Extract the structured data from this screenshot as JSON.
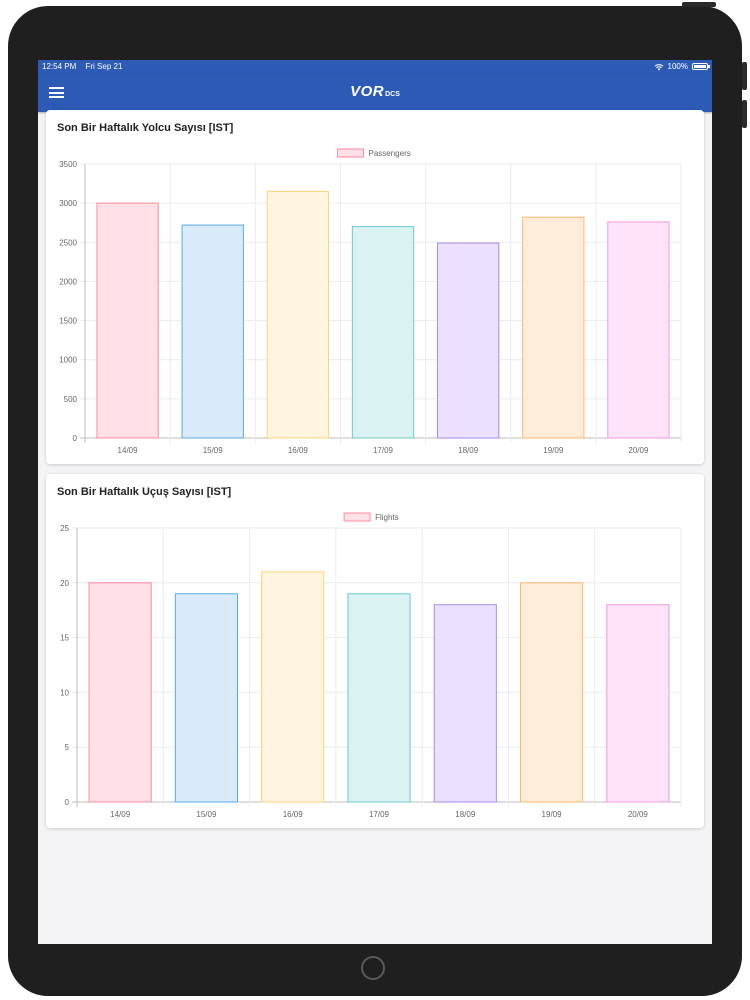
{
  "status_bar": {
    "time": "12:54 PM",
    "date": "Fri Sep 21",
    "battery": "100%",
    "battery_level": 1.0
  },
  "nav": {
    "brand_main": "VOR",
    "brand_sub": "DCS",
    "menu_icon": "hamburger-menu-icon"
  },
  "colors": {
    "nav_bg": "#2c5ab5",
    "bar_fills": [
      "#ffe0e6",
      "#d9ebfa",
      "#fff4dd",
      "#dbf2f2",
      "#ebe0ff",
      "#ffecd9",
      "#ffe3f6"
    ],
    "bar_borders": [
      "#ff8aa2",
      "#5aa9e6",
      "#ffd27a",
      "#6ccaca",
      "#a98aea",
      "#ffb870",
      "#f09ade"
    ]
  },
  "cards": [
    {
      "title": "Son Bir Haftalık Yolcu Sayısı [IST]",
      "chart_data": {
        "type": "bar",
        "categories": [
          "14/09",
          "15/09",
          "16/09",
          "17/09",
          "18/09",
          "19/09",
          "20/09"
        ],
        "series": [
          {
            "name": "Passengers",
            "values": [
              3000,
              2720,
              3150,
              2700,
              2490,
              2820,
              2760
            ]
          }
        ],
        "ylim": [
          0,
          3500
        ],
        "yticks": [
          0,
          500,
          1000,
          1500,
          2000,
          2500,
          3000,
          3500
        ],
        "grid": true,
        "legend": "top-center"
      }
    },
    {
      "title": "Son Bir Haftalık Uçuş Sayısı [IST]",
      "chart_data": {
        "type": "bar",
        "categories": [
          "14/09",
          "15/09",
          "16/09",
          "17/09",
          "18/09",
          "19/09",
          "20/09"
        ],
        "series": [
          {
            "name": "Flights",
            "values": [
              20,
              19,
              21,
              19,
              18,
              20,
              18
            ]
          }
        ],
        "ylim": [
          0,
          25
        ],
        "yticks": [
          0,
          5,
          10,
          15,
          20,
          25
        ],
        "grid": true,
        "legend": "top-center"
      }
    }
  ]
}
